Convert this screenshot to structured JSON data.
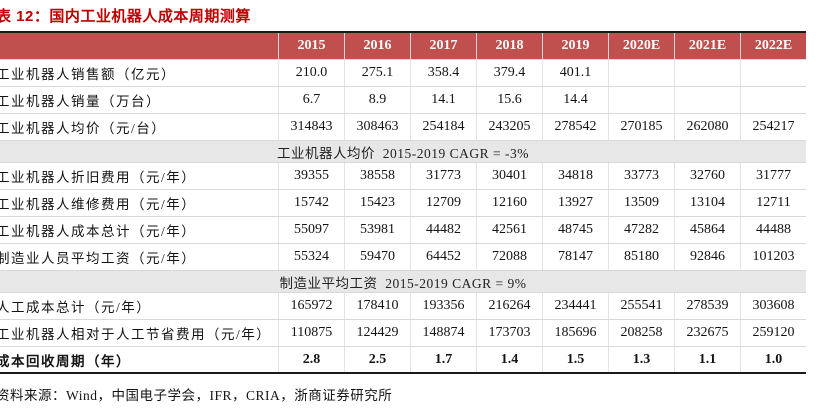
{
  "chart_data": {
    "type": "table",
    "title": "表 12：国内工业机器人成本周期测算",
    "columns": [
      "2015",
      "2016",
      "2017",
      "2018",
      "2019",
      "2020E",
      "2021E",
      "2022E"
    ],
    "rows": [
      {
        "type": "data",
        "label": "工业机器人销售额（亿元）",
        "values": [
          "210.0",
          "275.1",
          "358.4",
          "379.4",
          "401.1",
          "",
          "",
          ""
        ]
      },
      {
        "type": "data",
        "label": "工业机器人销量（万台）",
        "values": [
          "6.7",
          "8.9",
          "14.1",
          "15.6",
          "14.4",
          "",
          "",
          ""
        ]
      },
      {
        "type": "data",
        "label": "工业机器人均价（元/台）",
        "values": [
          "314843",
          "308463",
          "254184",
          "243205",
          "278542",
          "270185",
          "262080",
          "254217"
        ]
      },
      {
        "type": "merged",
        "label": "工业机器人均价  2015-2019 CAGR = -3%"
      },
      {
        "type": "data",
        "label": "工业机器人折旧费用（元/年）",
        "values": [
          "39355",
          "38558",
          "31773",
          "30401",
          "34818",
          "33773",
          "32760",
          "31777"
        ]
      },
      {
        "type": "data",
        "label": "工业机器人维修费用（元/年）",
        "values": [
          "15742",
          "15423",
          "12709",
          "12160",
          "13927",
          "13509",
          "13104",
          "12711"
        ]
      },
      {
        "type": "data",
        "label": "工业机器人成本总计（元/年）",
        "values": [
          "55097",
          "53981",
          "44482",
          "42561",
          "48745",
          "47282",
          "45864",
          "44488"
        ]
      },
      {
        "type": "data",
        "label": "制造业人员平均工资（元/年）",
        "values": [
          "55324",
          "59470",
          "64452",
          "72088",
          "78147",
          "85180",
          "92846",
          "101203"
        ]
      },
      {
        "type": "merged",
        "label": "制造业平均工资  2015-2019 CAGR = 9%"
      },
      {
        "type": "data",
        "label": "人工成本总计（元/年）",
        "values": [
          "165972",
          "178410",
          "193356",
          "216264",
          "234441",
          "255541",
          "278539",
          "303608"
        ]
      },
      {
        "type": "data",
        "label": "工业机器人相对于人工节省费用（元/年）",
        "values": [
          "110875",
          "124429",
          "148874",
          "173703",
          "185696",
          "208258",
          "232675",
          "259120"
        ]
      },
      {
        "type": "data",
        "bold": true,
        "label": "成本回收周期（年）",
        "values": [
          "2.8",
          "2.5",
          "1.7",
          "1.4",
          "1.5",
          "1.3",
          "1.1",
          "1.0"
        ]
      }
    ]
  },
  "source_note": "资料来源：Wind，中国电子学会，IFR，CRIA，浙商证券研究所",
  "colors": {
    "header_bg": "#C0504D",
    "title_red": "#C00000",
    "border_dark": "#1A1A1A",
    "merged_bg": "#E7E7E7"
  }
}
